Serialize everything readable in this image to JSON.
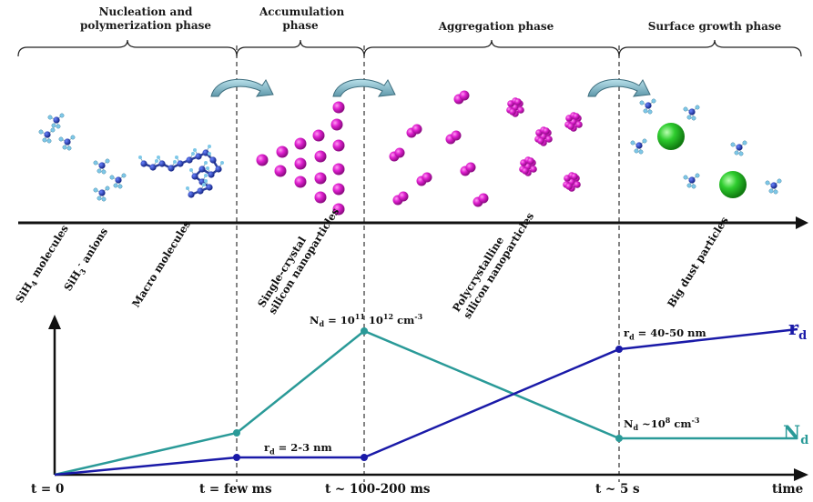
{
  "phases": [
    {
      "label": "Nucleation and polymerization phase"
    },
    {
      "label": "Accumulation phase"
    },
    {
      "label": "Aggregation phase"
    },
    {
      "label": "Surface growth phase"
    }
  ],
  "species": {
    "sih4_base": "SiH",
    "sih4_sub": "4",
    "sih4_rest": " molecules",
    "sih3_base": "SiH",
    "sih3_sub": "3",
    "sih3_sup": "-",
    "sih3_rest": " anions",
    "macro": "Macro molecules",
    "single_1": "Single-crystal",
    "single_2": "silicon nanoparticles",
    "poly_1": "Polycrystalline",
    "poly_2": "silicon nanoparticles",
    "dust": "Big dust particles"
  },
  "annotations": {
    "nd_peak": {
      "base": "N",
      "sub": "d",
      "mid": " = 10",
      "sup1": "11",
      "sp": " 10",
      "sup2": "12",
      "unit": " cm",
      "sup3": "-3"
    },
    "rd_small": {
      "base": "r",
      "sub": "d",
      "rest": " = 2-3 nm"
    },
    "rd_large": {
      "base": "r",
      "sub": "d",
      "rest": " = 40-50 nm"
    },
    "nd_low": {
      "base": "N",
      "sub": "d",
      "mid": " ~10",
      "sup1": "8",
      "unit": " cm",
      "sup2": "-3"
    }
  },
  "axis": {
    "t0": "t = 0",
    "t1": "t = few ms",
    "t2": "t ~ 100-200 ms",
    "t3": "t ~ 5 s",
    "time": "time"
  },
  "curves": {
    "rd_label": "r",
    "rd_sub": "d",
    "nd_label": "N",
    "nd_sub": "d"
  },
  "colors": {
    "rd_curve": "#1a1aa8",
    "nd_curve": "#2a9a98",
    "nanoparticle": "#e020d0",
    "dust_particle": "#2ecc2e",
    "molecule_center": "#1c2ea8",
    "hydrogen": "#7ec8e8",
    "arrow_fill": "#7fb9c9"
  },
  "icons": [
    "curved-arrow-icon",
    "sih4-molecule-icon",
    "sih3-anion-icon",
    "macro-molecule-icon",
    "nanoparticle-icon",
    "cluster-icon",
    "dust-particle-icon"
  ]
}
